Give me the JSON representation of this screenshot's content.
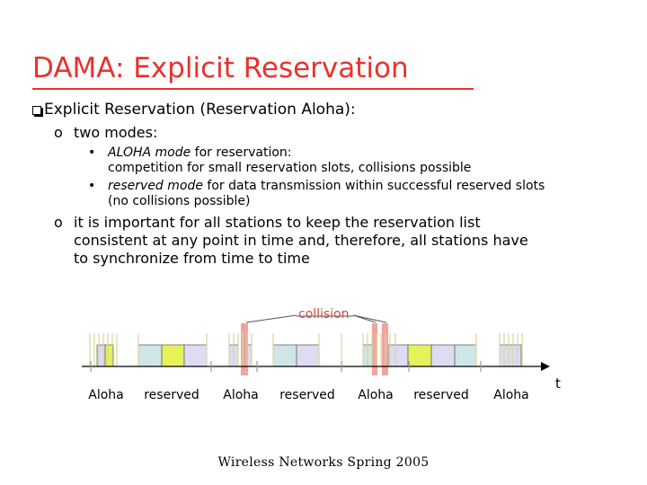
{
  "title": "DAMA: Explicit Reservation",
  "main_point": "Explicit Reservation (Reservation Aloha):",
  "sub_points": [
    {
      "marker": "o",
      "text": "two modes:"
    },
    {
      "marker": "o",
      "lines": [
        "it is important for all stations to keep the reservation list",
        "consistent at any point in time and, therefore, all stations have",
        "to synchronize from time to time"
      ]
    }
  ],
  "modes": [
    {
      "marker": "•",
      "emph": "ALOHA mode",
      "rest": " for reservation:",
      "line2": "competition for small reservation slots, collisions possible"
    },
    {
      "marker": "•",
      "emph": "reserved mode",
      "rest": " for data transmission within successful reserved slots",
      "line2": "(no collisions possible)"
    }
  ],
  "diagram": {
    "collision_label": "collision",
    "time_label": "t",
    "phase_labels": [
      "Aloha",
      "reserved",
      "Aloha",
      "reserved",
      "Aloha",
      "reserved",
      "Aloha"
    ],
    "colors": {
      "aloha_slot": "#dcdcf5",
      "teal_slot": "#cfe6e6",
      "yellow_slot": "#e6f25a",
      "collision": "#f0a49e",
      "tick": "#d9d49a",
      "gray_line": "#999999"
    }
  },
  "footer": "Wireless Networks Spring 2005"
}
